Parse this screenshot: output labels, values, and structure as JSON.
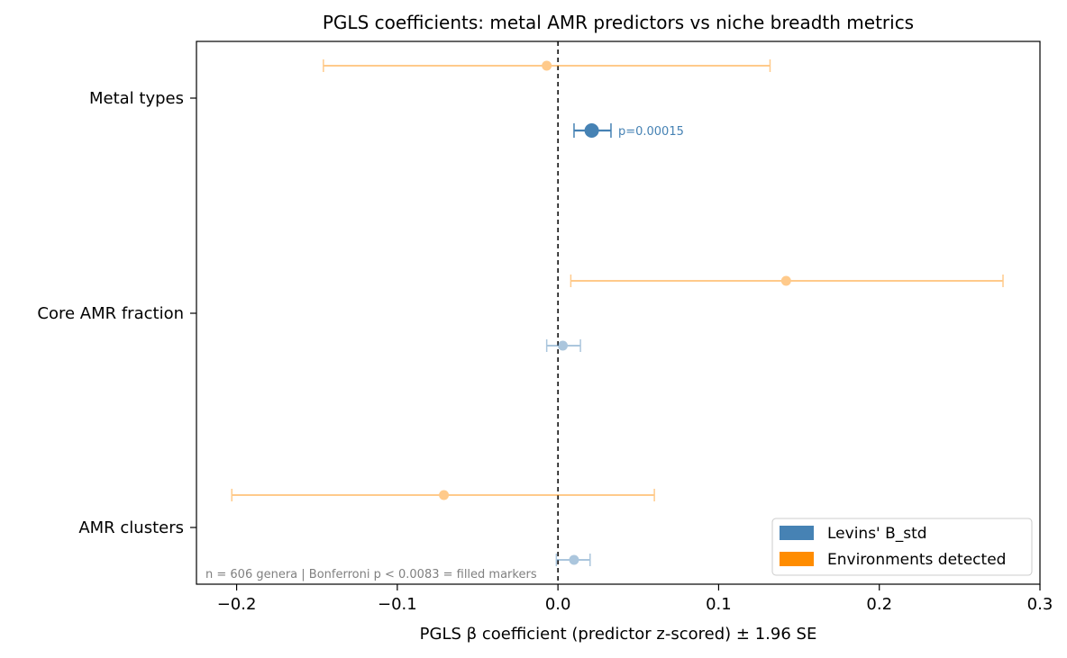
{
  "chart_data": {
    "type": "scatter",
    "title": "PGLS coefficients: metal AMR predictors vs niche breadth metrics",
    "xlabel": "PGLS β coefficient (predictor z-scored) ± 1.96 SE",
    "ylabel": "",
    "xlim": [
      -0.225,
      0.3
    ],
    "xticks": [
      -0.2,
      -0.1,
      0.0,
      0.1,
      0.2,
      0.3
    ],
    "xtick_labels": [
      "−0.2",
      "−0.1",
      "0.0",
      "0.1",
      "0.2",
      "0.3"
    ],
    "categories": [
      "Metal types",
      "Core AMR fraction",
      "AMR clusters"
    ],
    "reference_line_x": 0,
    "grid": false,
    "legend_position": "lower-right",
    "series": [
      {
        "name": "Levins' B_std",
        "color": "#4682b4",
        "points": [
          {
            "category": "Metal types",
            "beta": 0.021,
            "ci_low": 0.01,
            "ci_high": 0.033,
            "significant": true,
            "annotation": "p=0.00015"
          },
          {
            "category": "Core AMR fraction",
            "beta": 0.003,
            "ci_low": -0.007,
            "ci_high": 0.014,
            "significant": false,
            "annotation": ""
          },
          {
            "category": "AMR clusters",
            "beta": 0.01,
            "ci_low": -0.001,
            "ci_high": 0.02,
            "significant": false,
            "annotation": ""
          }
        ]
      },
      {
        "name": "Environments detected",
        "color": "#ff8c00",
        "points": [
          {
            "category": "Metal types",
            "beta": -0.007,
            "ci_low": -0.146,
            "ci_high": 0.132,
            "significant": false,
            "annotation": ""
          },
          {
            "category": "Core AMR fraction",
            "beta": 0.142,
            "ci_low": 0.008,
            "ci_high": 0.277,
            "significant": false,
            "annotation": ""
          },
          {
            "category": "AMR clusters",
            "beta": -0.071,
            "ci_low": -0.203,
            "ci_high": 0.06,
            "significant": false,
            "annotation": ""
          }
        ]
      }
    ],
    "footnote": "n = 606 genera | Bonferroni p < 0.0083 = filled markers"
  }
}
